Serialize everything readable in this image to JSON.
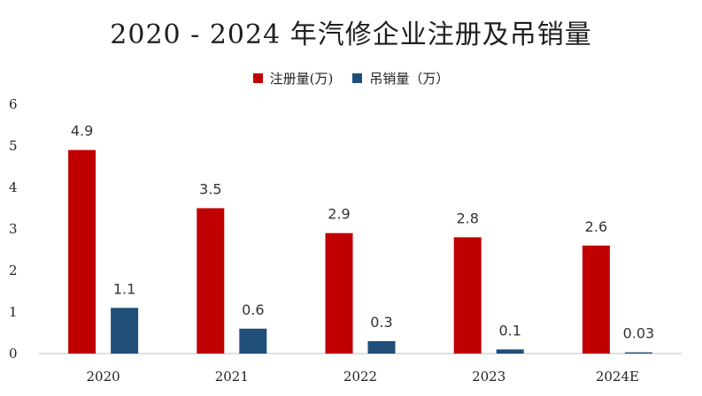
{
  "colors": {
    "series1": "#c00000",
    "series2": "#1f4e79"
  },
  "chart_data": {
    "type": "bar",
    "title": "2020 - 2024 年汽修企业注册及吊销量",
    "xlabel": "",
    "ylabel": "",
    "categories": [
      "2020",
      "2021",
      "2022",
      "2023",
      "2024E"
    ],
    "series": [
      {
        "name": "注册量(万)",
        "values": [
          4.9,
          3.5,
          2.9,
          2.8,
          2.6
        ],
        "labels": [
          "4.9",
          "3.5",
          "2.9",
          "2.8",
          "2.6"
        ]
      },
      {
        "name": "吊销量（万）",
        "values": [
          1.1,
          0.6,
          0.3,
          0.1,
          0.03
        ],
        "labels": [
          "1.1",
          "0.6",
          "0.3",
          "0.1",
          "0.03"
        ]
      }
    ],
    "ylim": [
      0,
      6
    ],
    "yticks": [
      "0",
      "1",
      "2",
      "3",
      "4",
      "5",
      "6"
    ],
    "grid": false,
    "legend_position": "top"
  }
}
